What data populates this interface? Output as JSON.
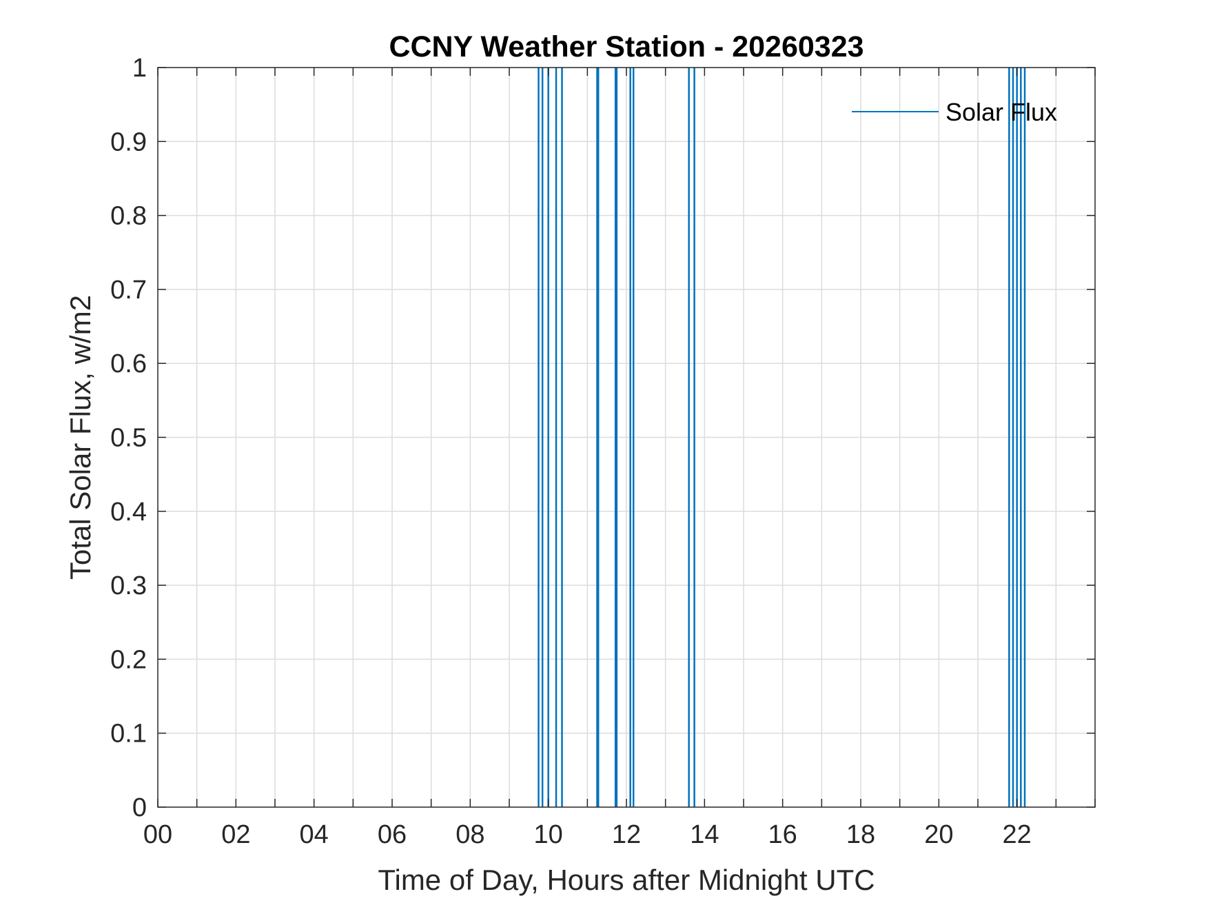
{
  "chart_data": {
    "type": "line",
    "title": "CCNY Weather Station - 20260323",
    "xlabel": "Time of Day, Hours after Midnight UTC",
    "ylabel": "Total Solar Flux, w/m2",
    "xlim": [
      0,
      24
    ],
    "ylim": [
      0,
      1
    ],
    "xticks": [
      0,
      2,
      4,
      6,
      8,
      10,
      12,
      14,
      16,
      18,
      20,
      22
    ],
    "xtick_labels": [
      "00",
      "02",
      "04",
      "06",
      "08",
      "10",
      "12",
      "14",
      "16",
      "18",
      "20",
      "22"
    ],
    "yticks": [
      0,
      0.1,
      0.2,
      0.3,
      0.4,
      0.5,
      0.6,
      0.7,
      0.8,
      0.9,
      1
    ],
    "ytick_labels": [
      "0",
      "0.1",
      "0.2",
      "0.3",
      "0.4",
      "0.5",
      "0.6",
      "0.7",
      "0.8",
      "0.9",
      "1"
    ],
    "grid": true,
    "legend_position": "top-right",
    "series": [
      {
        "name": "Solar Flux",
        "color": "#0072BD",
        "spike_times": [
          9.75,
          9.85,
          10.0,
          10.2,
          10.35,
          11.25,
          11.28,
          11.72,
          11.75,
          12.1,
          12.18,
          13.6,
          13.74,
          21.8,
          21.9,
          22.0,
          22.1,
          22.2
        ]
      }
    ]
  }
}
